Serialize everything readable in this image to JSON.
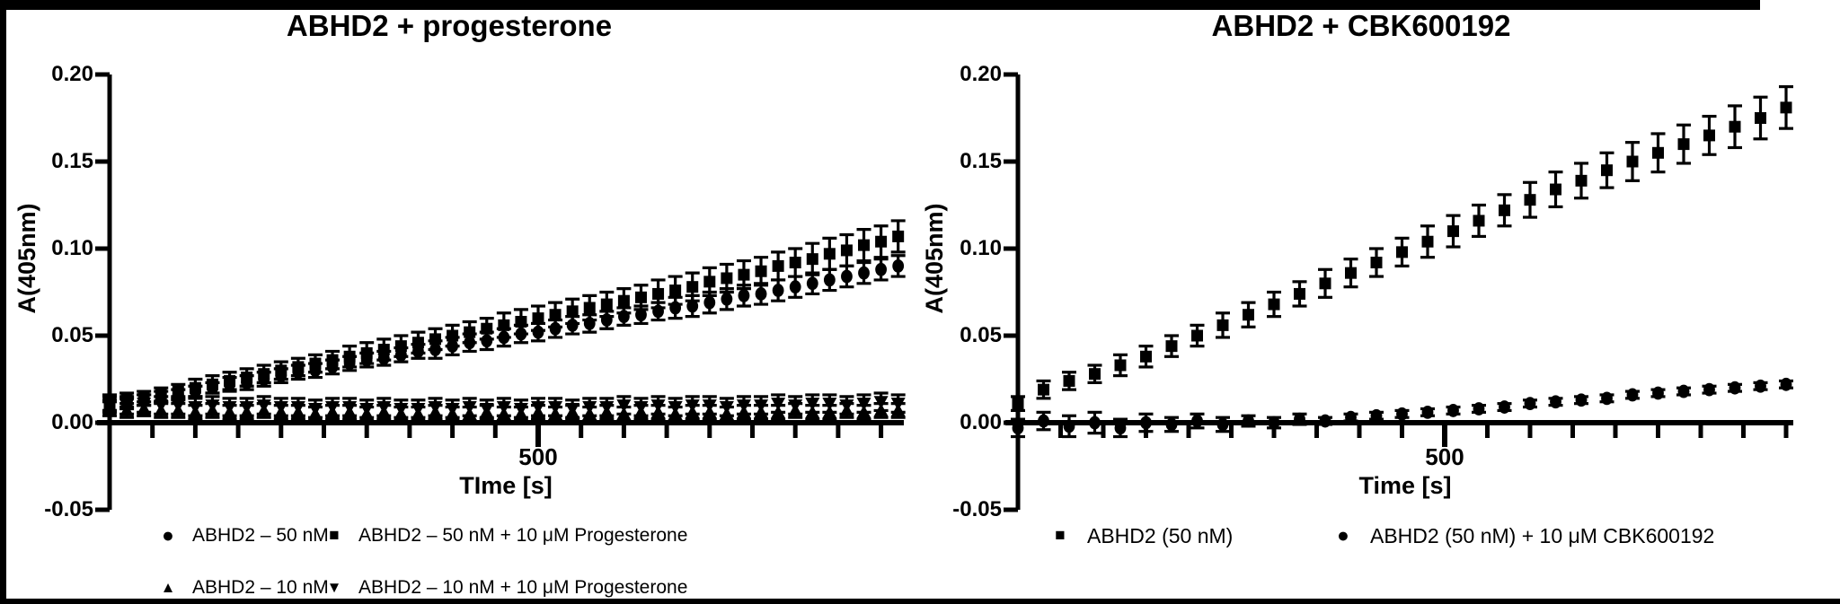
{
  "figure": {
    "background_color": "#ffffff",
    "border_color": "#000000",
    "plot_color": "#000000"
  },
  "chart_data": [
    {
      "type": "scatter",
      "title": "ABHD2 + progesterone",
      "xlabel": "TIme [s]",
      "ylabel": "A(405nm)",
      "xlim": [
        0,
        940
      ],
      "ylim": [
        -0.05,
        0.2
      ],
      "x_major_tick": 500,
      "x_major_tick_label": "500",
      "x_minor_tick_step": 50,
      "y_tick_values": [
        0.2,
        0.15,
        0.1,
        0.05,
        0.0,
        -0.05
      ],
      "y_tick_labels": [
        "0.20",
        "0.15",
        "0.10",
        "0.05",
        "0.00",
        "-0.05"
      ],
      "grid": false,
      "legend_position": "bottom",
      "x_step": 20,
      "x": [
        0,
        20,
        40,
        60,
        80,
        100,
        120,
        140,
        160,
        180,
        200,
        220,
        240,
        260,
        280,
        300,
        320,
        340,
        360,
        380,
        400,
        420,
        440,
        460,
        480,
        500,
        520,
        540,
        560,
        580,
        600,
        620,
        640,
        660,
        680,
        700,
        720,
        740,
        760,
        780,
        800,
        820,
        840,
        860,
        880,
        900,
        920
      ],
      "series": [
        {
          "name": "ABHD2 – 50 nM",
          "marker": "circle",
          "glyph": "●",
          "values": [
            0.01,
            0.011,
            0.013,
            0.015,
            0.016,
            0.018,
            0.02,
            0.022,
            0.023,
            0.025,
            0.027,
            0.029,
            0.03,
            0.032,
            0.034,
            0.036,
            0.037,
            0.039,
            0.041,
            0.042,
            0.044,
            0.046,
            0.047,
            0.049,
            0.051,
            0.052,
            0.054,
            0.056,
            0.057,
            0.059,
            0.061,
            0.062,
            0.064,
            0.066,
            0.067,
            0.069,
            0.071,
            0.073,
            0.074,
            0.076,
            0.078,
            0.08,
            0.082,
            0.084,
            0.086,
            0.088,
            0.09
          ],
          "errors": [
            0.003,
            0.003,
            0.003,
            0.003,
            0.003,
            0.003,
            0.003,
            0.004,
            0.004,
            0.004,
            0.004,
            0.004,
            0.004,
            0.004,
            0.004,
            0.004,
            0.004,
            0.004,
            0.004,
            0.005,
            0.005,
            0.005,
            0.005,
            0.005,
            0.005,
            0.005,
            0.005,
            0.005,
            0.005,
            0.005,
            0.005,
            0.005,
            0.005,
            0.006,
            0.006,
            0.006,
            0.006,
            0.006,
            0.006,
            0.006,
            0.006,
            0.006,
            0.006,
            0.006,
            0.006,
            0.006,
            0.006
          ]
        },
        {
          "name": "ABHD2 – 50 nM + 10 μM Progesterone",
          "marker": "square",
          "glyph": "■",
          "values": [
            0.011,
            0.013,
            0.014,
            0.016,
            0.018,
            0.02,
            0.022,
            0.024,
            0.026,
            0.028,
            0.03,
            0.032,
            0.034,
            0.036,
            0.038,
            0.04,
            0.042,
            0.044,
            0.046,
            0.048,
            0.05,
            0.052,
            0.054,
            0.056,
            0.058,
            0.06,
            0.062,
            0.064,
            0.066,
            0.068,
            0.07,
            0.072,
            0.074,
            0.076,
            0.078,
            0.081,
            0.083,
            0.085,
            0.087,
            0.09,
            0.092,
            0.094,
            0.097,
            0.099,
            0.102,
            0.104,
            0.107
          ],
          "errors": [
            0.004,
            0.004,
            0.004,
            0.004,
            0.004,
            0.005,
            0.005,
            0.005,
            0.005,
            0.005,
            0.005,
            0.005,
            0.005,
            0.005,
            0.006,
            0.006,
            0.006,
            0.006,
            0.006,
            0.006,
            0.006,
            0.006,
            0.006,
            0.007,
            0.007,
            0.007,
            0.007,
            0.007,
            0.007,
            0.007,
            0.007,
            0.007,
            0.008,
            0.008,
            0.008,
            0.008,
            0.008,
            0.008,
            0.008,
            0.008,
            0.008,
            0.009,
            0.009,
            0.009,
            0.009,
            0.009,
            0.009
          ]
        },
        {
          "name": "ABHD2 – 10 nM",
          "marker": "triangle-up",
          "glyph": "▲",
          "values": [
            0.008,
            0.007,
            0.008,
            0.007,
            0.007,
            0.006,
            0.007,
            0.006,
            0.006,
            0.007,
            0.006,
            0.006,
            0.005,
            0.006,
            0.006,
            0.005,
            0.006,
            0.005,
            0.005,
            0.006,
            0.005,
            0.005,
            0.006,
            0.005,
            0.005,
            0.006,
            0.005,
            0.006,
            0.005,
            0.006,
            0.005,
            0.006,
            0.006,
            0.005,
            0.006,
            0.006,
            0.005,
            0.006,
            0.006,
            0.006,
            0.007,
            0.006,
            0.006,
            0.007,
            0.006,
            0.007,
            0.007
          ],
          "errors": 0.004
        },
        {
          "name": "ABHD2 – 10 nM + 10 μM Progesterone",
          "marker": "triangle-down",
          "glyph": "▼",
          "values": [
            0.011,
            0.01,
            0.011,
            0.01,
            0.01,
            0.009,
            0.01,
            0.009,
            0.009,
            0.01,
            0.009,
            0.009,
            0.008,
            0.009,
            0.009,
            0.008,
            0.009,
            0.008,
            0.008,
            0.009,
            0.008,
            0.009,
            0.008,
            0.009,
            0.008,
            0.009,
            0.009,
            0.008,
            0.009,
            0.009,
            0.01,
            0.009,
            0.01,
            0.009,
            0.01,
            0.01,
            0.009,
            0.01,
            0.01,
            0.011,
            0.01,
            0.011,
            0.011,
            0.01,
            0.011,
            0.012,
            0.011
          ],
          "errors": 0.005
        }
      ]
    },
    {
      "type": "scatter",
      "title": "ABHD2 + CBK600192",
      "xlabel": "Time [s]",
      "ylabel": "A(405nm)",
      "xlim": [
        0,
        920
      ],
      "ylim": [
        -0.05,
        0.2
      ],
      "x_major_tick": 500,
      "x_major_tick_label": "500",
      "x_minor_tick_step": 50,
      "y_tick_values": [
        0.2,
        0.15,
        0.1,
        0.05,
        0.0,
        -0.05
      ],
      "y_tick_labels": [
        "0.20",
        "0.15",
        "0.10",
        "0.05",
        "0.00",
        "-0.05"
      ],
      "grid": false,
      "legend_position": "bottom",
      "x_step": 30,
      "x": [
        0,
        30,
        60,
        90,
        120,
        150,
        180,
        210,
        240,
        270,
        300,
        330,
        360,
        390,
        420,
        450,
        480,
        510,
        540,
        570,
        600,
        630,
        660,
        690,
        720,
        750,
        780,
        810,
        840,
        870,
        900
      ],
      "series": [
        {
          "name": "ABHD2 (50 nM)",
          "marker": "square",
          "glyph": "■",
          "values": [
            0.011,
            0.019,
            0.024,
            0.028,
            0.033,
            0.038,
            0.044,
            0.05,
            0.056,
            0.062,
            0.068,
            0.074,
            0.08,
            0.086,
            0.092,
            0.098,
            0.104,
            0.11,
            0.116,
            0.122,
            0.128,
            0.134,
            0.139,
            0.145,
            0.15,
            0.155,
            0.16,
            0.165,
            0.17,
            0.175,
            0.181
          ],
          "errors": [
            0.004,
            0.005,
            0.005,
            0.005,
            0.006,
            0.006,
            0.006,
            0.006,
            0.007,
            0.007,
            0.007,
            0.007,
            0.008,
            0.008,
            0.008,
            0.008,
            0.009,
            0.009,
            0.009,
            0.009,
            0.01,
            0.01,
            0.01,
            0.01,
            0.011,
            0.011,
            0.011,
            0.011,
            0.012,
            0.012,
            0.012
          ]
        },
        {
          "name": "ABHD2 (50 nM) + 10 μM CBK600192",
          "marker": "circle",
          "glyph": "●",
          "values": [
            -0.003,
            0.001,
            -0.002,
            0.0,
            -0.003,
            0.0,
            -0.001,
            0.001,
            -0.001,
            0.001,
            0.0,
            0.002,
            0.001,
            0.003,
            0.004,
            0.005,
            0.006,
            0.007,
            0.008,
            0.009,
            0.011,
            0.012,
            0.013,
            0.014,
            0.016,
            0.017,
            0.018,
            0.019,
            0.02,
            0.021,
            0.022
          ],
          "errors": [
            0.005,
            0.005,
            0.006,
            0.006,
            0.005,
            0.005,
            0.004,
            0.004,
            0.004,
            0.003,
            0.003,
            0.003,
            0.002,
            0.002,
            0.002,
            0.002,
            0.002,
            0.002,
            0.002,
            0.002,
            0.002,
            0.002,
            0.002,
            0.002,
            0.002,
            0.002,
            0.002,
            0.002,
            0.002,
            0.002,
            0.002
          ]
        }
      ]
    }
  ]
}
